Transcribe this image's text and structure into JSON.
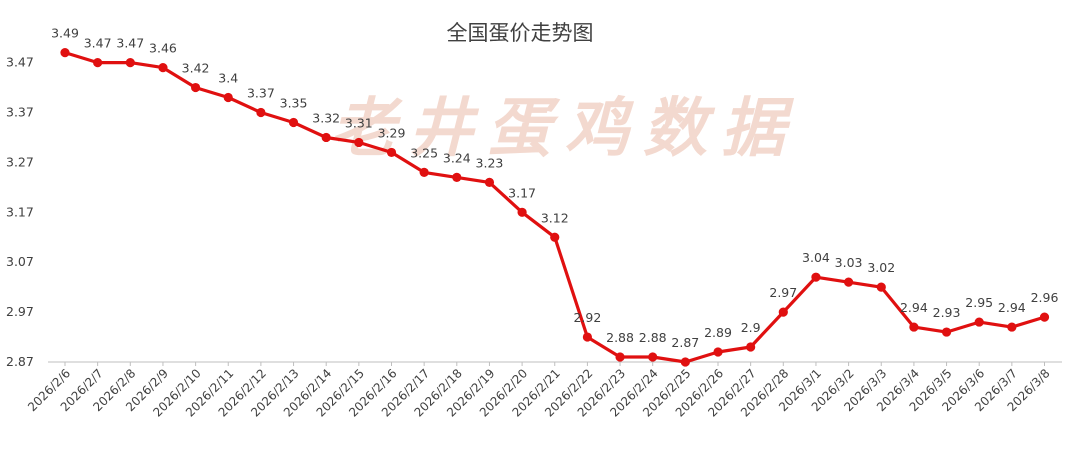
{
  "chart_data": {
    "type": "line",
    "title": "全国蛋价走势图",
    "watermark": "老井蛋鸡数据",
    "xlabel": "",
    "ylabel": "",
    "ylim": [
      2.87,
      3.52
    ],
    "yticks": [
      "2.87",
      "2.97",
      "3.07",
      "3.17",
      "3.27",
      "3.37",
      "3.47"
    ],
    "grid": false,
    "colors": {
      "line": "#e01010",
      "marker": "#e01010",
      "text": "#404040",
      "axis": "#bfbfbf"
    },
    "categories": [
      "2026/2/6",
      "2026/2/7",
      "2026/2/8",
      "2026/2/9",
      "2026/2/10",
      "2026/2/11",
      "2026/2/12",
      "2026/2/13",
      "2026/2/14",
      "2026/2/15",
      "2026/2/16",
      "2026/2/17",
      "2026/2/18",
      "2026/2/19",
      "2026/2/20",
      "2026/2/21",
      "2026/2/22",
      "2026/2/23",
      "2026/2/24",
      "2026/2/25",
      "2026/2/26",
      "2026/2/27",
      "2026/2/28",
      "2026/3/1",
      "2026/3/2",
      "2026/3/3",
      "2026/3/4",
      "2026/3/5",
      "2026/3/6",
      "2026/3/7",
      "2026/3/8"
    ],
    "values": [
      3.49,
      3.47,
      3.47,
      3.46,
      3.42,
      3.4,
      3.37,
      3.35,
      3.32,
      3.31,
      3.29,
      3.25,
      3.24,
      3.23,
      3.17,
      3.12,
      2.92,
      2.88,
      2.88,
      2.87,
      2.89,
      2.9,
      2.97,
      3.04,
      3.03,
      3.02,
      2.94,
      2.93,
      2.95,
      2.94,
      2.96
    ],
    "labels": [
      "3.49",
      "3.47",
      "3.47",
      "3.46",
      "3.42",
      "3.4",
      "3.37",
      "3.35",
      "3.32",
      "3.31",
      "3.29",
      "3.25",
      "3.24",
      "3.23",
      "3.17",
      "3.12",
      "2.92",
      "2.88",
      "2.88",
      "2.87",
      "2.89",
      "2.9",
      "2.97",
      "3.04",
      "3.03",
      "3.02",
      "2.94",
      "2.93",
      "2.95",
      "2.94",
      "2.96"
    ]
  }
}
